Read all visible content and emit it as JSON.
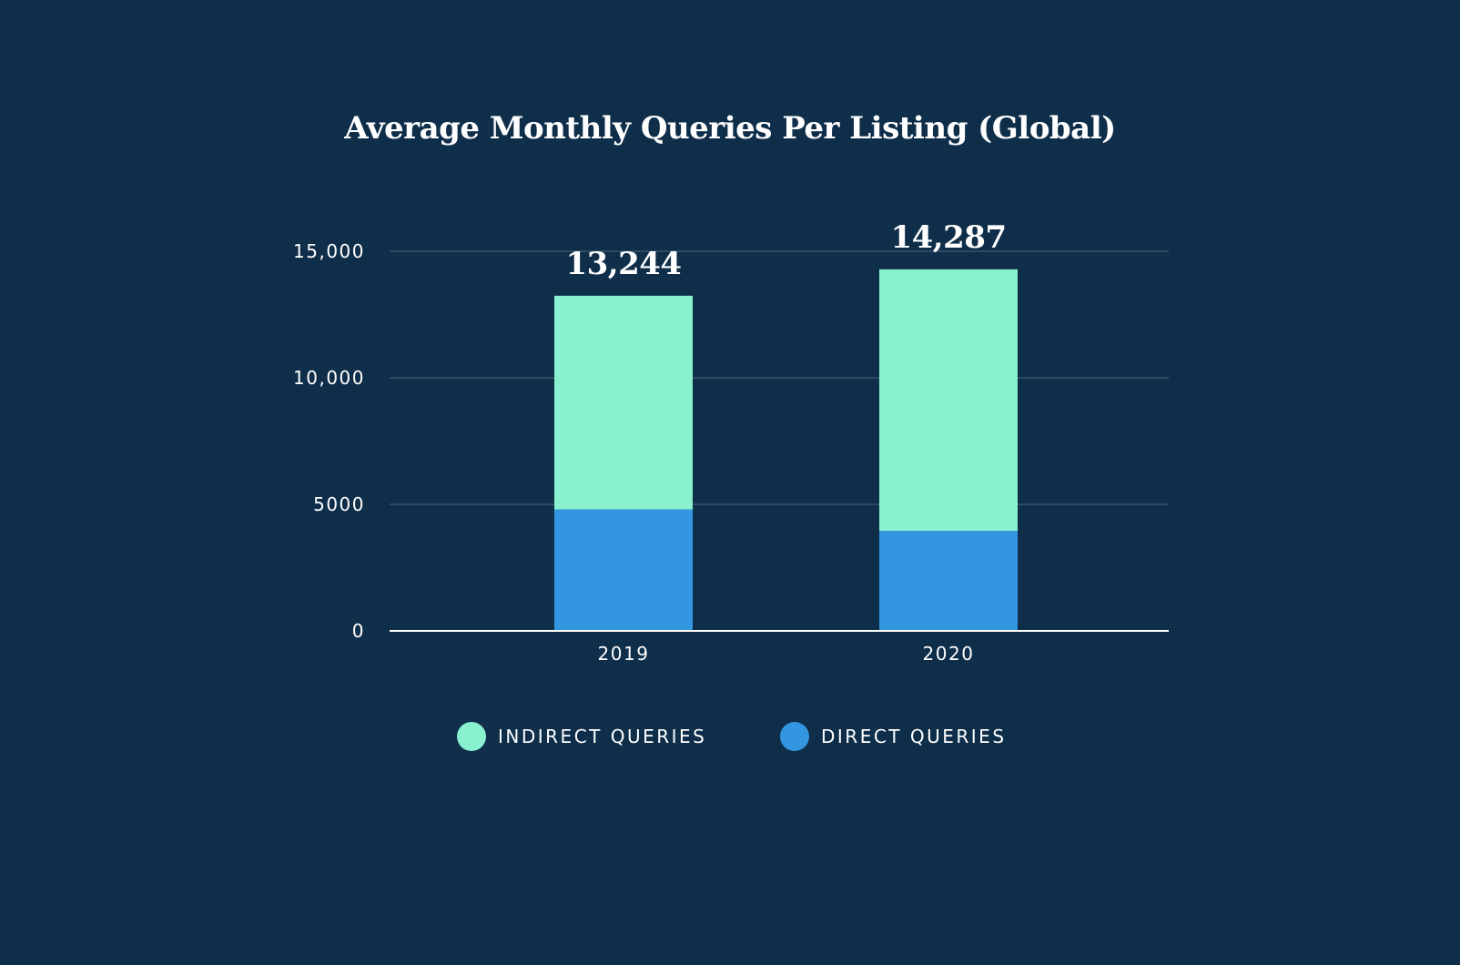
{
  "colors": {
    "background": "#0f2e4a",
    "indirect": "#89f0d0",
    "direct": "#3296e0",
    "grid": "#2e4a63",
    "axis": "#ffffff",
    "text": "#ffffff"
  },
  "chart_data": {
    "type": "bar",
    "stacked": true,
    "title": "Average Monthly Queries Per Listing (Global)",
    "xlabel": "",
    "ylabel": "",
    "categories": [
      "2019",
      "2020"
    ],
    "series": [
      {
        "name": "DIRECT QUERIES",
        "color": "#3296e0",
        "values": [
          4800,
          3950
        ]
      },
      {
        "name": "INDIRECT QUERIES",
        "color": "#89f0d0",
        "values": [
          8444,
          10337
        ]
      }
    ],
    "totals": [
      13244,
      14287
    ],
    "total_labels": [
      "13,244",
      "14,287"
    ],
    "ylim": [
      0,
      15000
    ],
    "yticks": [
      0,
      5000,
      10000,
      15000
    ],
    "ytick_labels": [
      "0",
      "5000",
      "10,000",
      "15,000"
    ],
    "grid": true,
    "legend": {
      "placement": "bottom-center",
      "items": [
        {
          "label": "INDIRECT QUERIES",
          "color": "#89f0d0"
        },
        {
          "label": "DIRECT QUERIES",
          "color": "#3296e0"
        }
      ]
    }
  }
}
